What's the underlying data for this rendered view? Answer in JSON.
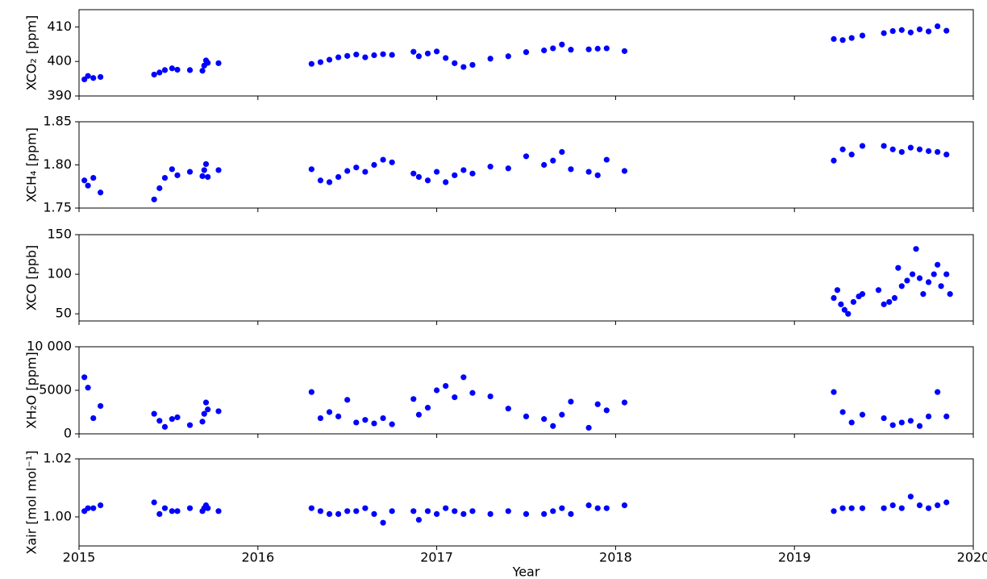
{
  "chart_data": [
    {
      "type": "scatter",
      "ylabel": "XCO₂ [ppm]",
      "color": "#0000ff",
      "xlim": [
        2015,
        2020
      ],
      "ylim": [
        390,
        415
      ],
      "yticks": [
        390,
        400,
        410
      ],
      "x": [
        2015.03,
        2015.05,
        2015.08,
        2015.12,
        2015.42,
        2015.45,
        2015.48,
        2015.52,
        2015.55,
        2015.62,
        2015.69,
        2015.7,
        2015.71,
        2015.72,
        2015.78,
        2016.3,
        2016.35,
        2016.4,
        2016.45,
        2016.5,
        2016.55,
        2016.6,
        2016.65,
        2016.7,
        2016.75,
        2016.87,
        2016.9,
        2016.95,
        2017.0,
        2017.05,
        2017.1,
        2017.15,
        2017.2,
        2017.3,
        2017.4,
        2017.5,
        2017.6,
        2017.65,
        2017.7,
        2017.75,
        2017.85,
        2017.9,
        2017.95,
        2018.05,
        2019.22,
        2019.27,
        2019.32,
        2019.38,
        2019.5,
        2019.55,
        2019.6,
        2019.65,
        2019.7,
        2019.75,
        2019.8,
        2019.85
      ],
      "values": [
        394.8,
        395.8,
        395.2,
        395.5,
        396.2,
        396.8,
        397.5,
        398,
        397.6,
        397.5,
        397.3,
        398.8,
        400.3,
        399.6,
        399.5,
        399.3,
        399.8,
        400.5,
        401.2,
        401.6,
        402,
        401.2,
        401.8,
        402.1,
        401.9,
        402.8,
        401.5,
        402.3,
        402.9,
        401,
        399.5,
        398.4,
        399,
        400.8,
        401.5,
        402.7,
        403.2,
        403.8,
        404.9,
        403.4,
        403.5,
        403.7,
        403.8,
        403,
        406.5,
        406.2,
        406.8,
        407.5,
        408.2,
        408.8,
        409.1,
        408.4,
        409.3,
        408.7,
        410.2,
        408.9
      ]
    },
    {
      "type": "scatter",
      "ylabel": "XCH₄ [ppm]",
      "color": "#0000ff",
      "xlim": [
        2015,
        2020
      ],
      "ylim": [
        1.75,
        1.85
      ],
      "yticks": [
        1.75,
        {
          "value": 1.8,
          "label": "1.80"
        },
        1.85
      ],
      "x": [
        2015.03,
        2015.05,
        2015.08,
        2015.12,
        2015.42,
        2015.45,
        2015.48,
        2015.52,
        2015.55,
        2015.62,
        2015.69,
        2015.7,
        2015.71,
        2015.72,
        2015.78,
        2016.3,
        2016.35,
        2016.4,
        2016.45,
        2016.5,
        2016.55,
        2016.6,
        2016.65,
        2016.7,
        2016.75,
        2016.87,
        2016.9,
        2016.95,
        2017.0,
        2017.05,
        2017.1,
        2017.15,
        2017.2,
        2017.3,
        2017.4,
        2017.5,
        2017.6,
        2017.65,
        2017.7,
        2017.75,
        2017.85,
        2017.9,
        2017.95,
        2018.05,
        2019.22,
        2019.27,
        2019.32,
        2019.38,
        2019.5,
        2019.55,
        2019.6,
        2019.65,
        2019.7,
        2019.75,
        2019.8,
        2019.85
      ],
      "values": [
        1.782,
        1.776,
        1.785,
        1.768,
        1.76,
        1.773,
        1.785,
        1.795,
        1.788,
        1.792,
        1.787,
        1.794,
        1.801,
        1.786,
        1.794,
        1.795,
        1.782,
        1.78,
        1.786,
        1.793,
        1.797,
        1.792,
        1.8,
        1.806,
        1.803,
        1.79,
        1.786,
        1.782,
        1.792,
        1.78,
        1.788,
        1.794,
        1.79,
        1.798,
        1.796,
        1.81,
        1.8,
        1.805,
        1.815,
        1.795,
        1.792,
        1.788,
        1.806,
        1.793,
        1.805,
        1.818,
        1.812,
        1.822,
        1.822,
        1.818,
        1.815,
        1.82,
        1.818,
        1.816,
        1.815,
        1.812
      ]
    },
    {
      "type": "scatter",
      "ylabel": "XCO [ppb]",
      "color": "#0000ff",
      "xlim": [
        2015,
        2020
      ],
      "ylim": [
        41,
        150
      ],
      "yticks": [
        50,
        100,
        150
      ],
      "x": [
        2019.22,
        2019.24,
        2019.26,
        2019.28,
        2019.3,
        2019.33,
        2019.36,
        2019.38,
        2019.47,
        2019.5,
        2019.53,
        2019.56,
        2019.58,
        2019.6,
        2019.63,
        2019.66,
        2019.68,
        2019.7,
        2019.72,
        2019.75,
        2019.78,
        2019.8,
        2019.82,
        2019.85,
        2019.87
      ],
      "values": [
        70,
        80,
        62,
        55,
        50,
        65,
        72,
        75,
        80,
        62,
        65,
        70,
        108,
        85,
        92,
        100,
        132,
        95,
        75,
        90,
        100,
        112,
        85,
        100,
        75
      ]
    },
    {
      "type": "scatter",
      "ylabel": "XH₂O [ppm]",
      "color": "#0000ff",
      "xlim": [
        2015,
        2020
      ],
      "ylim": [
        0,
        10000
      ],
      "yticks": [
        0,
        5000,
        {
          "value": 10000,
          "label": "10 000"
        }
      ],
      "x": [
        2015.03,
        2015.05,
        2015.08,
        2015.12,
        2015.42,
        2015.45,
        2015.48,
        2015.52,
        2015.55,
        2015.62,
        2015.69,
        2015.7,
        2015.71,
        2015.72,
        2015.78,
        2016.3,
        2016.35,
        2016.4,
        2016.45,
        2016.5,
        2016.55,
        2016.6,
        2016.65,
        2016.7,
        2016.75,
        2016.87,
        2016.9,
        2016.95,
        2017.0,
        2017.05,
        2017.1,
        2017.15,
        2017.2,
        2017.3,
        2017.4,
        2017.5,
        2017.6,
        2017.65,
        2017.7,
        2017.75,
        2017.85,
        2017.9,
        2017.95,
        2018.05,
        2019.22,
        2019.27,
        2019.32,
        2019.38,
        2019.5,
        2019.55,
        2019.6,
        2019.65,
        2019.7,
        2019.75,
        2019.8,
        2019.85
      ],
      "values": [
        6500,
        5300,
        1800,
        3200,
        2300,
        1500,
        800,
        1700,
        1900,
        1000,
        1400,
        2300,
        3600,
        2800,
        2600,
        4800,
        1800,
        2500,
        2000,
        3900,
        1300,
        1600,
        1200,
        1800,
        1100,
        4000,
        2200,
        3000,
        5000,
        5500,
        4200,
        6500,
        4700,
        4300,
        2900,
        2000,
        1700,
        900,
        2200,
        3700,
        700,
        3400,
        2700,
        3600,
        4800,
        2500,
        1300,
        2200,
        1800,
        1000,
        1300,
        1500,
        900,
        2000,
        4800,
        2000
      ]
    },
    {
      "type": "scatter",
      "ylabel": "Xair [mol mol⁻¹]",
      "xlabel": "Year",
      "color": "#0000ff",
      "xlim": [
        2015,
        2020
      ],
      "xticks": [
        2015,
        2016,
        2017,
        2018,
        2019,
        2020
      ],
      "ylim": [
        0.99,
        1.02
      ],
      "yticks": [
        {
          "value": 1,
          "label": "1.00"
        },
        {
          "value": 1.02,
          "label": "1.02"
        }
      ],
      "x": [
        2015.03,
        2015.05,
        2015.08,
        2015.12,
        2015.42,
        2015.45,
        2015.48,
        2015.52,
        2015.55,
        2015.62,
        2015.69,
        2015.7,
        2015.71,
        2015.72,
        2015.78,
        2016.3,
        2016.35,
        2016.4,
        2016.45,
        2016.5,
        2016.55,
        2016.6,
        2016.65,
        2016.7,
        2016.75,
        2016.87,
        2016.9,
        2016.95,
        2017.0,
        2017.05,
        2017.1,
        2017.15,
        2017.2,
        2017.3,
        2017.4,
        2017.5,
        2017.6,
        2017.65,
        2017.7,
        2017.75,
        2017.85,
        2017.9,
        2017.95,
        2018.05,
        2019.22,
        2019.27,
        2019.32,
        2019.38,
        2019.5,
        2019.55,
        2019.6,
        2019.65,
        2019.7,
        2019.75,
        2019.8,
        2019.85
      ],
      "values": [
        1.002,
        1.003,
        1.003,
        1.004,
        1.005,
        1.001,
        1.003,
        1.002,
        1.002,
        1.003,
        1.002,
        1.003,
        1.004,
        1.003,
        1.002,
        1.003,
        1.002,
        1.001,
        1.001,
        1.002,
        1.002,
        1.003,
        1.001,
        0.998,
        1.002,
        1.002,
        0.999,
        1.002,
        1.001,
        1.003,
        1.002,
        1.001,
        1.002,
        1.001,
        1.002,
        1.001,
        1.001,
        1.002,
        1.003,
        1.001,
        1.004,
        1.003,
        1.003,
        1.004,
        1.002,
        1.003,
        1.003,
        1.003,
        1.003,
        1.004,
        1.003,
        1.007,
        1.004,
        1.003,
        1.004,
        1.005
      ]
    }
  ]
}
